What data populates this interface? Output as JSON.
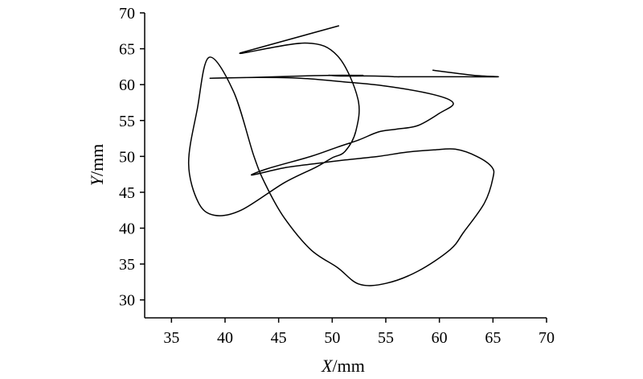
{
  "chart_data": {
    "type": "line",
    "title": "",
    "xlabel": {
      "var": "X",
      "unit": "/mm"
    },
    "ylabel": {
      "var": "Y",
      "unit": "/mm"
    },
    "xlim": [
      32.5,
      70
    ],
    "ylim": [
      27.5,
      70
    ],
    "xticks": [
      35,
      40,
      45,
      50,
      55,
      60,
      65,
      70
    ],
    "yticks": [
      30,
      35,
      40,
      45,
      50,
      55,
      60,
      65,
      70
    ],
    "xtick_labels": [
      "35",
      "40",
      "45",
      "50",
      "55",
      "60",
      "65",
      "70"
    ],
    "ytick_labels": [
      "30",
      "35",
      "40",
      "45",
      "50",
      "55",
      "60",
      "65",
      "70"
    ],
    "grid": false,
    "legend": "none",
    "line_color": "#000000",
    "series": [
      {
        "x": [
          50.6,
          41.4,
          47.5,
          50.5,
          52.4,
          52.2,
          51.2,
          50.0,
          48.5,
          45.5,
          41.5,
          39.0,
          37.5,
          36.6,
          37.4,
          38.5,
          40.8,
          42.7,
          43.8,
          45.5,
          48.0,
          50.5,
          52.5,
          55.0,
          58.0,
          61.0,
          62.3,
          64.2,
          65.0,
          64.9,
          63.5,
          61.5,
          59.5,
          57.0,
          54.3,
          51.2,
          48.5,
          45.5,
          42.5,
          44.0,
          48.0,
          50.5,
          52.5,
          54.3,
          56.0,
          58.0,
          60.0,
          61.3,
          59.5,
          55.0,
          51.0,
          47.0,
          43.0,
          38.6,
          42.5,
          47.0,
          50.0,
          52.5,
          52.6,
          50.0,
          49.8,
          50.8,
          54.0,
          56.0,
          56.3,
          56.2,
          56.6,
          57.0,
          58.0,
          59.8,
          62.5,
          65.5,
          63.2,
          59.4
        ],
        "y": [
          68.2,
          64.4,
          65.8,
          64.0,
          58.0,
          53.5,
          50.7,
          49.8,
          48.5,
          46.3,
          42.5,
          41.8,
          43.6,
          49.0,
          56.5,
          63.8,
          59.0,
          50.0,
          46.0,
          41.5,
          37.0,
          34.5,
          32.2,
          32.3,
          34.0,
          37.0,
          39.5,
          43.5,
          47.0,
          48.5,
          50.0,
          51.0,
          50.9,
          50.6,
          50.0,
          49.5,
          49.0,
          48.4,
          47.4,
          48.3,
          50.0,
          51.3,
          52.3,
          53.4,
          53.8,
          54.3,
          56.0,
          57.4,
          58.6,
          59.8,
          60.4,
          60.9,
          61.0,
          60.9,
          61.0,
          61.2,
          61.3,
          61.3,
          61.3,
          61.3,
          61.3,
          61.2,
          61.2,
          61.1,
          61.1,
          61.1,
          61.1,
          61.1,
          61.1,
          61.1,
          61.1,
          61.1,
          61.3,
          62.0
        ]
      }
    ]
  }
}
